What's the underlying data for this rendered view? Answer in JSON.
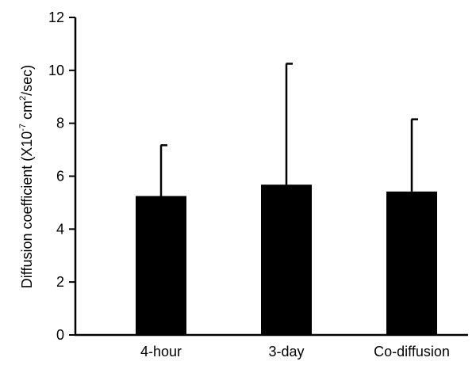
{
  "chart_data": {
    "type": "bar",
    "title": "",
    "xlabel": "",
    "ylabel": {
      "prefix": "Diffusion coefficient (X10",
      "exp1": "-7",
      "unit": " cm",
      "exp2": "2",
      "suffix": "/sec)"
    },
    "categories": [
      "4-hour",
      "3-day",
      "Co-diffusion"
    ],
    "values": [
      5.25,
      5.68,
      5.42
    ],
    "error_upper": [
      7.17,
      10.25,
      8.15
    ],
    "ylim": [
      0,
      12
    ],
    "yticks": [
      0,
      2,
      4,
      6,
      8,
      10,
      12
    ],
    "grid": false,
    "legend": "none",
    "colors": {
      "bar": "#000000",
      "axis": "#000000",
      "background": "#ffffff"
    }
  }
}
